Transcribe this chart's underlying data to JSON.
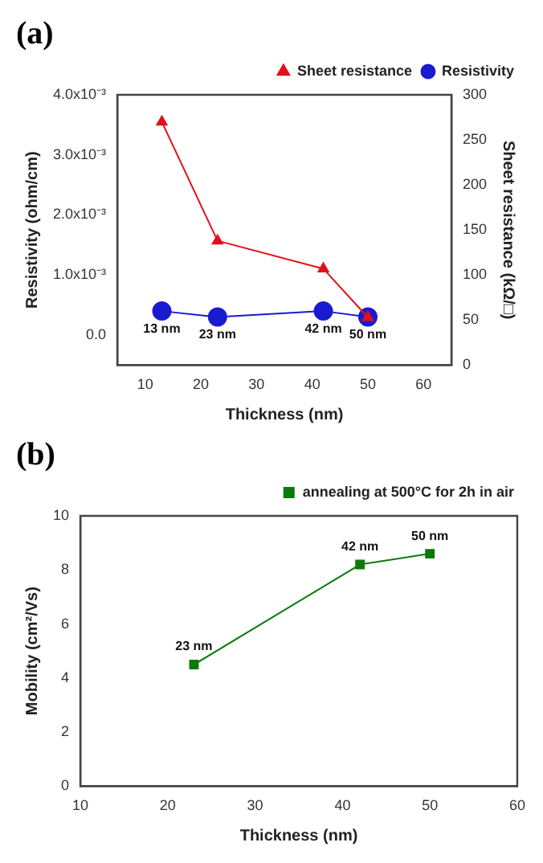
{
  "chart_data": [
    {
      "type": "line",
      "title": "(a)",
      "xlabel": "Thickness (nm)",
      "ylabel": "Resistivity (ohm/cm)",
      "y2label": "Sheet resistance (kΩ/□)",
      "xlim": [
        5,
        65
      ],
      "xticks": [
        10,
        20,
        30,
        40,
        50,
        60
      ],
      "ylim": [
        -0.0005,
        0.004
      ],
      "yticks": [
        {
          "value": 0,
          "label": "0.0"
        },
        {
          "value": 0.001,
          "label": "1.0x10⁻³"
        },
        {
          "value": 0.002,
          "label": "2.0x10⁻³"
        },
        {
          "value": 0.003,
          "label": "3.0x10⁻³"
        },
        {
          "value": 0.004,
          "label": "4.0x10⁻³"
        }
      ],
      "y2lim": [
        0,
        300
      ],
      "y2ticks": [
        0,
        50,
        100,
        150,
        200,
        250,
        300
      ],
      "series": [
        {
          "name": "Sheet resistance",
          "color": "#e0101c",
          "axis": "y2",
          "marker": "triangle",
          "x": [
            13,
            23,
            42,
            50
          ],
          "values": [
            270,
            138,
            107,
            53
          ]
        },
        {
          "name": "Resistivity",
          "color": "#1a1ad0",
          "axis": "y",
          "marker": "circle",
          "x": [
            13,
            23,
            42,
            50
          ],
          "values": [
            0.0004,
            0.0003,
            0.0004,
            0.0003
          ]
        }
      ],
      "annotations": [
        {
          "text": "13 nm",
          "x": 13,
          "y": 0.0004
        },
        {
          "text": "23 nm",
          "x": 23,
          "y": 0.0003
        },
        {
          "text": "42 nm",
          "x": 42,
          "y": 0.0004
        },
        {
          "text": "50 nm",
          "x": 50,
          "y": 0.0003
        }
      ],
      "legend": "top right",
      "grid": false,
      "line_style": "solid"
    },
    {
      "type": "line",
      "title": "(b)",
      "xlabel": "Thickness (nm)",
      "ylabel": "Mobility (cm²/Vs)",
      "xlim": [
        10,
        60
      ],
      "xticks": [
        10,
        20,
        30,
        40,
        50,
        60
      ],
      "ylim": [
        0,
        10
      ],
      "yticks": [
        0,
        2,
        4,
        6,
        8,
        10
      ],
      "series": [
        {
          "name": "annealing at 500°C for 2h in air",
          "color": "#0a7a0a",
          "marker": "square",
          "x": [
            23,
            42,
            50
          ],
          "values": [
            4.5,
            8.2,
            8.6
          ]
        }
      ],
      "annotations": [
        {
          "text": "23 nm",
          "x": 23,
          "y": 4.5
        },
        {
          "text": "42 nm",
          "x": 42,
          "y": 8.2
        },
        {
          "text": "50 nm",
          "x": 50,
          "y": 8.6
        }
      ],
      "legend": "top right",
      "grid": false,
      "line_style": "solid"
    }
  ]
}
